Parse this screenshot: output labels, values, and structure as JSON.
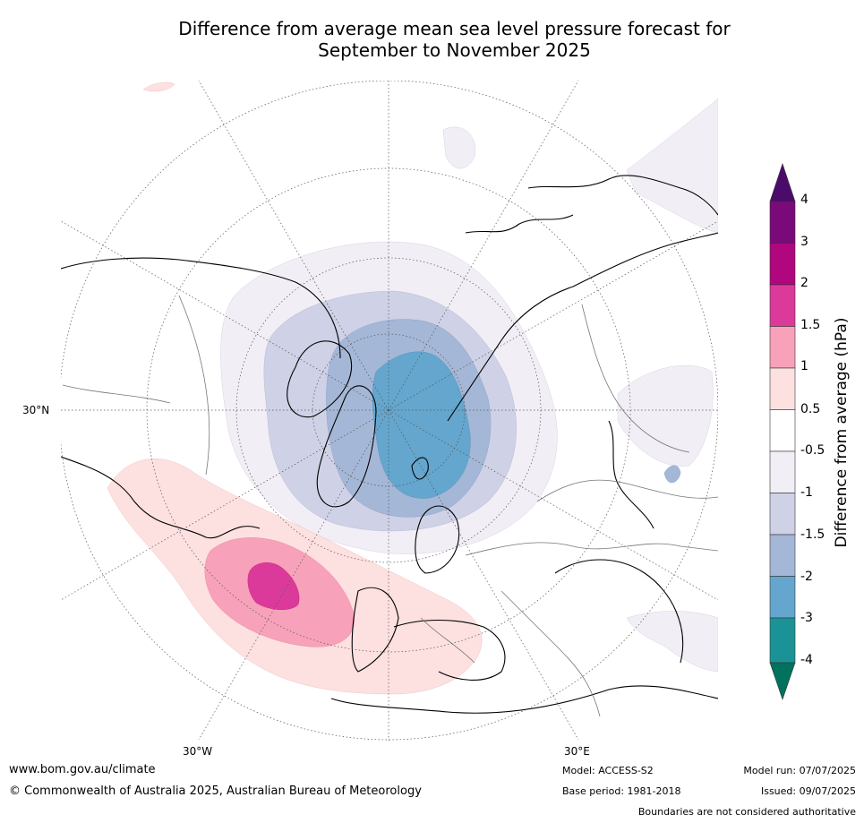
{
  "title_line1": "Difference from average mean sea level pressure forecast for",
  "title_line2": "September to November 2025",
  "map": {
    "lat_label": "30°N",
    "lon_labels": [
      "30°W",
      "30°E"
    ]
  },
  "colorbar": {
    "title": "Difference from average (hPa)",
    "ticks": [
      "4",
      "3",
      "2",
      "1.5",
      "1",
      "0.5",
      "-0.5",
      "-1",
      "-1.5",
      "-2",
      "-3",
      "-4"
    ],
    "colors": [
      "#4b0b6b",
      "#7a0a7a",
      "#b0077e",
      "#dc3a9b",
      "#f7a2ba",
      "#fde0e0",
      "#ffffff",
      "#f2eef5",
      "#cfd1e6",
      "#a5b7d6",
      "#64a6cd",
      "#1b9396",
      "#00725e"
    ]
  },
  "footer": {
    "website": "www.bom.gov.au/climate",
    "copyright": "© Commonwealth of Australia 2025, Australian Bureau of Meteorology",
    "model": "Model: ACCESS-S2",
    "base_period": "Base period: 1981-2018",
    "model_run": "Model run: 07/07/2025",
    "issued": "Issued: 09/07/2025",
    "disclaimer": "Boundaries are not considered authoritative"
  }
}
